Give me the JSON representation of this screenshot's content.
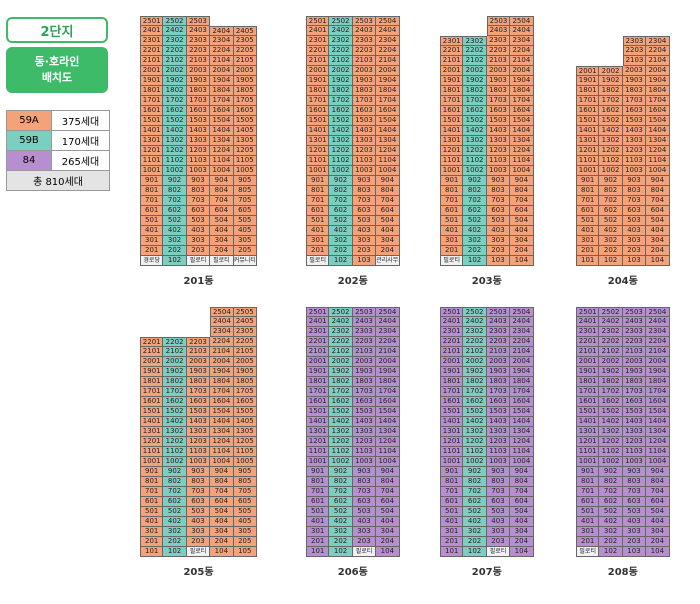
{
  "legend": {
    "phase": "2단지",
    "subtitle_line1": "동·호라인",
    "subtitle_line2": "배치도",
    "types": [
      {
        "name": "59A",
        "count": "375세대",
        "color": "#f4a27a"
      },
      {
        "name": "59B",
        "count": "170세대",
        "color": "#7ccfc0"
      },
      {
        "name": "84",
        "count": "265세대",
        "color": "#b78fd0"
      }
    ],
    "total": "총 810세대"
  },
  "buildings": [
    {
      "label": "201동",
      "x": 140,
      "lines": [
        {
          "top": 25,
          "type": "59A",
          "bottom": "경로당"
        },
        {
          "top": 25,
          "type": "59B",
          "bottom": "102"
        },
        {
          "top": 25,
          "type": "59A",
          "bottom": "필로티"
        },
        {
          "top": 24,
          "type": "59A",
          "bottom": "필로티"
        },
        {
          "top": 24,
          "type": "59A",
          "bottom": "커뮤니티"
        }
      ]
    },
    {
      "label": "202동",
      "x": 306,
      "lines": [
        {
          "top": 25,
          "type": "59A",
          "bottom": "필로티"
        },
        {
          "top": 25,
          "type": "59B",
          "bottom": "102"
        },
        {
          "top": 25,
          "type": "59A",
          "bottom": "103"
        },
        {
          "top": 25,
          "type": "59A",
          "bottom": "관리사무소"
        }
      ]
    },
    {
      "label": "203동",
      "x": 440,
      "lines": [
        {
          "top": 23,
          "type": "59A",
          "bottom": "필로티"
        },
        {
          "top": 23,
          "type": "59B",
          "bottom": "102"
        },
        {
          "top": 25,
          "type": "59A",
          "bottom": "103"
        },
        {
          "top": 25,
          "type": "59A",
          "bottom": "104"
        }
      ]
    },
    {
      "label": "204동",
      "x": 576,
      "lines": [
        {
          "top": 20,
          "type": "59A",
          "bottom": "101"
        },
        {
          "top": 20,
          "type": "59A",
          "bottom": "102"
        },
        {
          "top": 23,
          "type": "59A",
          "bottom": "103"
        },
        {
          "top": 23,
          "type": "59A",
          "bottom": "104"
        }
      ]
    },
    {
      "label": "205동",
      "x": 140,
      "lines": [
        {
          "top": 22,
          "type": "59A",
          "bottom": "101"
        },
        {
          "top": 22,
          "type": "59B",
          "bottom": "102"
        },
        {
          "top": 22,
          "type": "59A",
          "bottom": "필로티"
        },
        {
          "top": 25,
          "type": "59A",
          "bottom": "104"
        },
        {
          "top": 25,
          "type": "59A",
          "bottom": "105"
        }
      ]
    },
    {
      "label": "206동",
      "x": 306,
      "lines": [
        {
          "top": 25,
          "type": "84",
          "bottom": "101"
        },
        {
          "top": 25,
          "type": "59B",
          "bottom": "102"
        },
        {
          "top": 25,
          "type": "84",
          "bottom": "필로티"
        },
        {
          "top": 25,
          "type": "84",
          "bottom": "104"
        }
      ]
    },
    {
      "label": "207동",
      "x": 440,
      "lines": [
        {
          "top": 25,
          "type": "84",
          "bottom": "101"
        },
        {
          "top": 25,
          "type": "59B",
          "bottom": "102"
        },
        {
          "top": 25,
          "type": "84",
          "bottom": "필로티"
        },
        {
          "top": 25,
          "type": "84",
          "bottom": "104"
        }
      ]
    },
    {
      "label": "208동",
      "x": 576,
      "lines": [
        {
          "top": 25,
          "type": "84",
          "bottom": "필로티"
        },
        {
          "top": 25,
          "type": "84",
          "bottom": "102"
        },
        {
          "top": 25,
          "type": "84",
          "bottom": "103"
        },
        {
          "top": 25,
          "type": "84",
          "bottom": "104"
        }
      ]
    }
  ]
}
